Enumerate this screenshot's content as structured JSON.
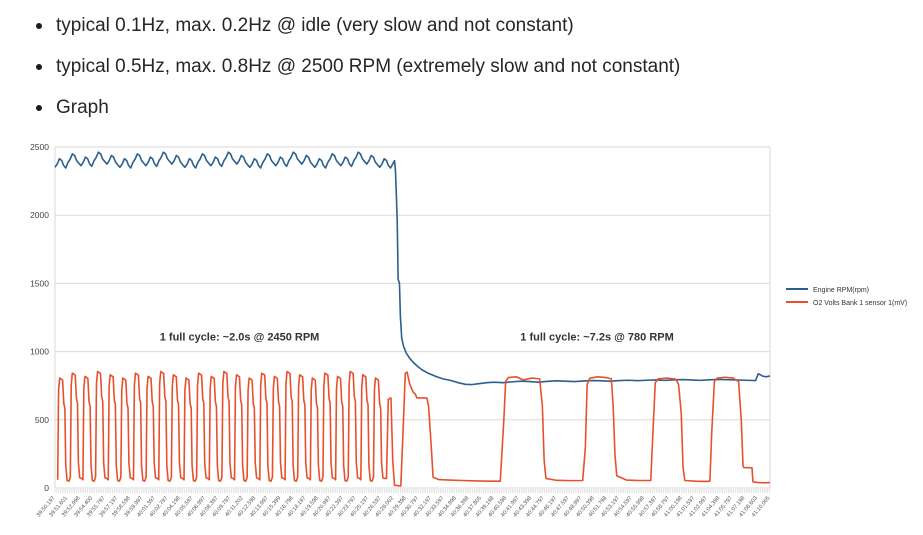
{
  "page": {
    "background": "#ffffff"
  },
  "bullets": [
    "typical 0.1Hz, max. 0.2Hz @ idle (very slow and not constant)",
    "typical 0.5Hz, max. 0.8Hz @ 2500 RPM (extremely slow and not constant)",
    "Graph"
  ],
  "chart_data": {
    "type": "line",
    "title": "",
    "xlabel": "",
    "ylabel": "",
    "ylim": [
      0,
      2500
    ],
    "yticks": [
      0,
      500,
      1000,
      1500,
      2000,
      2500
    ],
    "grid": true,
    "legend_position": "right",
    "x_duration_s": 79.808,
    "x_tick_labels": [
      "39:50.197",
      "39:51.601",
      "39:52.998",
      "39:54.400",
      "39:55.797",
      "39:57.197",
      "39:58.598",
      "39:59.997",
      "40:01.397",
      "40:02.797",
      "40:04.198",
      "40:05.597",
      "40:06.997",
      "40:08.397",
      "40:09.797",
      "40:11.202",
      "40:12.598",
      "40:13.997",
      "40:15.399",
      "40:16.798",
      "40:18.197",
      "40:19.598",
      "40:20.997",
      "40:22.397",
      "40:23.797",
      "40:25.197",
      "40:26.597",
      "40:28.002",
      "40:29.398",
      "40:30.797",
      "40:32.197",
      "40:33.597",
      "40:34.998",
      "40:36.398",
      "40:37.805",
      "40:39.198",
      "40:40.598",
      "40:41.997",
      "40:43.398",
      "40:44.797",
      "40:46.197",
      "40:47.597",
      "40:48.997",
      "40:50.398",
      "40:51.798",
      "40:53.197",
      "40:54.597",
      "40:55.998",
      "40:57.397",
      "40:58.797",
      "41:00.198",
      "41:01.597",
      "41:02.997",
      "41:04.398",
      "41:05.797",
      "41:07.198",
      "41:08.603",
      "41:10.005"
    ],
    "annotations": [
      {
        "text": "1 full cycle: ~2.0s @ 2450 RPM",
        "t": 20.6,
        "value": 1080
      },
      {
        "text": "1 full cycle: ~7.2s @ 780 RPM",
        "t": 60.5,
        "value": 1080
      }
    ],
    "series": [
      {
        "name": "Engine RPM(rpm)",
        "color": "#2b5f8e",
        "cycle_pattern": {
          "start": 0.0,
          "period": 1.45,
          "count": 26,
          "shape": [
            [
              0,
              2375
            ],
            [
              0.25,
              2400
            ],
            [
              0.5,
              2438
            ],
            [
              0.75,
              2425
            ],
            [
              0.95,
              2390
            ],
            [
              1.2,
              2370
            ]
          ]
        },
        "points": [
          [
            37.9,
            2400
          ],
          [
            38.0,
            2330
          ],
          [
            38.1,
            2150
          ],
          [
            38.2,
            1950
          ],
          [
            38.3,
            1530
          ],
          [
            38.45,
            1500
          ],
          [
            38.55,
            1260
          ],
          [
            38.7,
            1100
          ],
          [
            38.9,
            1040
          ],
          [
            39.2,
            990
          ],
          [
            39.6,
            950
          ],
          [
            40.0,
            920
          ],
          [
            40.5,
            890
          ],
          [
            41.0,
            865
          ],
          [
            41.7,
            840
          ],
          [
            42.5,
            818
          ],
          [
            43.3,
            800
          ],
          [
            44.2,
            788
          ],
          [
            45.0,
            772
          ],
          [
            45.8,
            760
          ],
          [
            46.5,
            758
          ],
          [
            47.3,
            765
          ],
          [
            48.2,
            772
          ],
          [
            49.0,
            776
          ],
          [
            50.0,
            772
          ],
          [
            51.0,
            778
          ],
          [
            52.0,
            783
          ],
          [
            53.0,
            780
          ],
          [
            54.0,
            776
          ],
          [
            55.0,
            782
          ],
          [
            56.0,
            786
          ],
          [
            57.0,
            783
          ],
          [
            58.0,
            780
          ],
          [
            59.0,
            785
          ],
          [
            60.0,
            788
          ],
          [
            61.0,
            786
          ],
          [
            62.0,
            783
          ],
          [
            63.0,
            788
          ],
          [
            64.0,
            790
          ],
          [
            65.0,
            787
          ],
          [
            66.0,
            790
          ],
          [
            67.0,
            792
          ],
          [
            68.0,
            789
          ],
          [
            69.0,
            792
          ],
          [
            70.0,
            795
          ],
          [
            71.0,
            792
          ],
          [
            72.0,
            789
          ],
          [
            73.0,
            793
          ],
          [
            74.0,
            796
          ],
          [
            75.0,
            794
          ],
          [
            76.0,
            792
          ],
          [
            77.0,
            790
          ],
          [
            78.2,
            788
          ],
          [
            78.5,
            838
          ],
          [
            79.0,
            820
          ],
          [
            79.4,
            815
          ],
          [
            79.808,
            822
          ]
        ]
      },
      {
        "name": "O2 Volts Bank 1 sensor 1(mV)",
        "color": "#e8502b",
        "cycle_pattern": {
          "start": 0.3,
          "period": 1.41,
          "count": 26,
          "shape": [
            [
              0,
              75
            ],
            [
              0.1,
              740
            ],
            [
              0.22,
              830
            ],
            [
              0.55,
              815
            ],
            [
              0.68,
              645
            ],
            [
              0.8,
              610
            ],
            [
              0.9,
              180
            ],
            [
              1.05,
              70
            ],
            [
              1.25,
              65
            ]
          ]
        },
        "points": [
          [
            37.0,
            70
          ],
          [
            37.2,
            650
          ],
          [
            37.5,
            660
          ],
          [
            37.7,
            200
          ],
          [
            37.9,
            20
          ],
          [
            38.6,
            15
          ],
          [
            38.9,
            500
          ],
          [
            39.1,
            840
          ],
          [
            39.3,
            850
          ],
          [
            39.6,
            760
          ],
          [
            40.0,
            700
          ],
          [
            40.2,
            690
          ],
          [
            40.4,
            660
          ],
          [
            41.5,
            660
          ],
          [
            41.7,
            600
          ],
          [
            42.0,
            300
          ],
          [
            42.2,
            80
          ],
          [
            42.8,
            62
          ],
          [
            44.0,
            58
          ],
          [
            45.5,
            55
          ],
          [
            47.0,
            52
          ],
          [
            48.5,
            50
          ],
          [
            49.7,
            50
          ],
          [
            50.1,
            500
          ],
          [
            50.3,
            780
          ],
          [
            50.6,
            810
          ],
          [
            51.5,
            815
          ],
          [
            52.3,
            792
          ],
          [
            53.2,
            806
          ],
          [
            54.1,
            800
          ],
          [
            54.4,
            600
          ],
          [
            54.6,
            200
          ],
          [
            54.8,
            70
          ],
          [
            56.0,
            56
          ],
          [
            57.5,
            54
          ],
          [
            58.9,
            55
          ],
          [
            59.2,
            300
          ],
          [
            59.4,
            760
          ],
          [
            59.7,
            805
          ],
          [
            60.6,
            815
          ],
          [
            61.5,
            810
          ],
          [
            62.1,
            800
          ],
          [
            62.3,
            600
          ],
          [
            62.5,
            250
          ],
          [
            62.7,
            90
          ],
          [
            63.8,
            58
          ],
          [
            65.2,
            55
          ],
          [
            66.5,
            55
          ],
          [
            66.7,
            350
          ],
          [
            67.0,
            770
          ],
          [
            67.3,
            800
          ],
          [
            68.3,
            806
          ],
          [
            69.3,
            798
          ],
          [
            69.6,
            760
          ],
          [
            69.9,
            550
          ],
          [
            70.1,
            150
          ],
          [
            70.3,
            55
          ],
          [
            71.5,
            50
          ],
          [
            72.5,
            48
          ],
          [
            73.1,
            50
          ],
          [
            73.3,
            400
          ],
          [
            73.6,
            780
          ],
          [
            73.9,
            805
          ],
          [
            74.8,
            812
          ],
          [
            75.7,
            806
          ],
          [
            76.3,
            780
          ],
          [
            76.6,
            500
          ],
          [
            76.8,
            160
          ],
          [
            76.9,
            150
          ],
          [
            77.8,
            148
          ],
          [
            77.9,
            45
          ],
          [
            78.5,
            40
          ],
          [
            79.2,
            38
          ],
          [
            79.808,
            40
          ]
        ]
      }
    ],
    "axis_colors": {
      "grid": "#dadada",
      "tick_label": "#555555",
      "minor_tick": "#c8c8c8",
      "annotation": "#333333"
    }
  }
}
